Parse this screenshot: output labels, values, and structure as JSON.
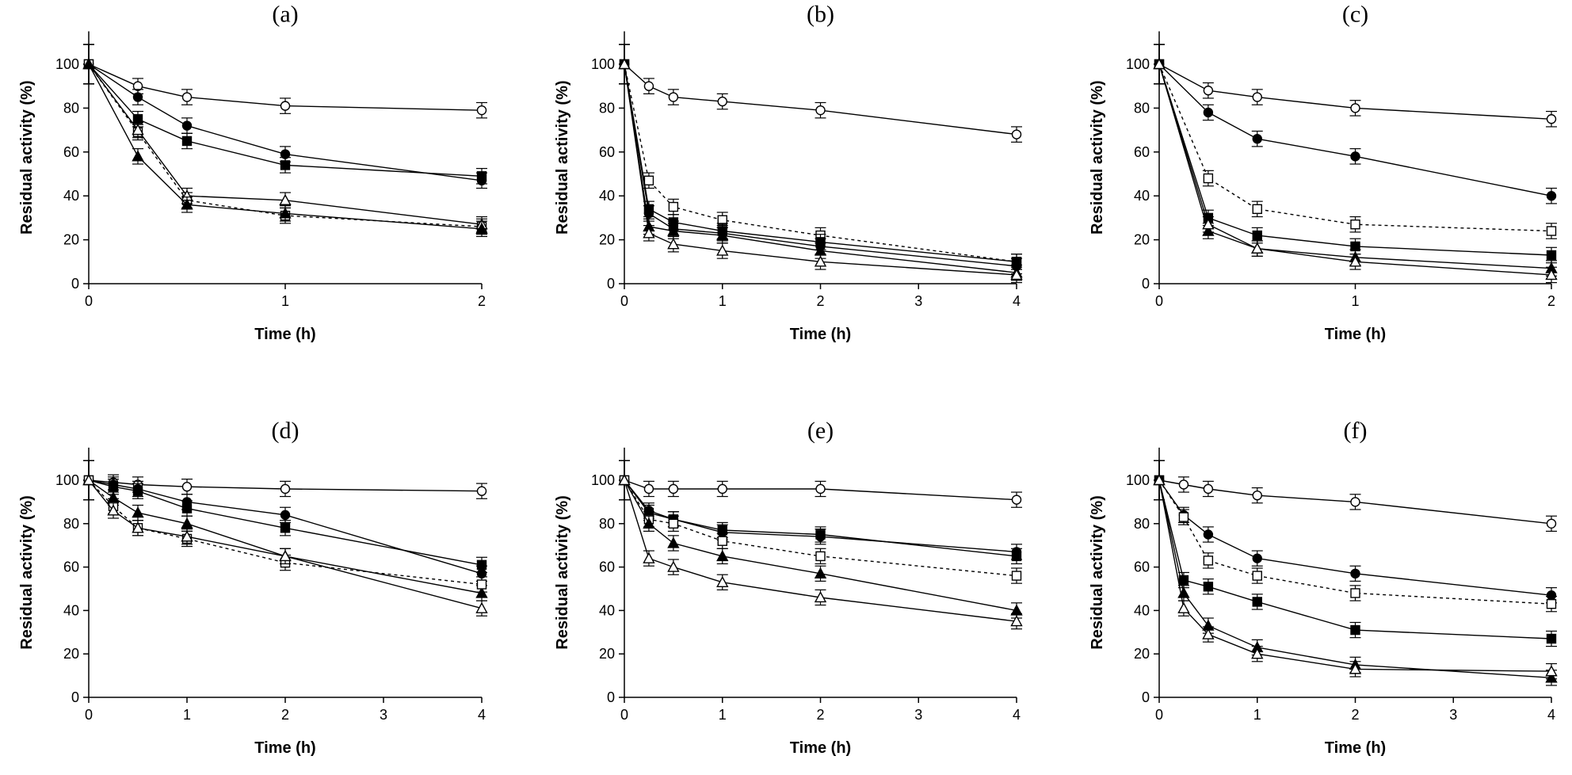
{
  "chart_data": [
    {
      "type": "line",
      "title": "(a)",
      "xlabel": "Time (h)",
      "ylabel": "Residual activity (%)",
      "xlim": [
        0,
        2
      ],
      "ylim": [
        0,
        115
      ],
      "xticks": [
        0,
        1,
        2
      ],
      "yticks": [
        0,
        20,
        40,
        60,
        80,
        100
      ],
      "grid": false,
      "series": [
        {
          "name": "open-circle",
          "marker": "circle-open",
          "dashed": false,
          "x": [
            0,
            0.25,
            0.5,
            1,
            2
          ],
          "y": [
            100,
            90,
            85,
            81,
            79
          ]
        },
        {
          "name": "filled-circle",
          "marker": "circle-filled",
          "dashed": false,
          "x": [
            0,
            0.25,
            0.5,
            1,
            2
          ],
          "y": [
            100,
            85,
            72,
            59,
            47
          ]
        },
        {
          "name": "filled-square",
          "marker": "square-filled",
          "dashed": false,
          "x": [
            0,
            0.25,
            0.5,
            1,
            2
          ],
          "y": [
            100,
            75,
            65,
            54,
            49
          ]
        },
        {
          "name": "open-square",
          "marker": "square-open",
          "dashed": true,
          "x": [
            0,
            0.25,
            0.5,
            1,
            2
          ],
          "y": [
            100,
            69,
            38,
            31,
            26
          ]
        },
        {
          "name": "open-triangle",
          "marker": "triangle-open",
          "dashed": false,
          "x": [
            0,
            0.25,
            0.5,
            1,
            2
          ],
          "y": [
            100,
            70,
            40,
            38,
            27
          ]
        },
        {
          "name": "filled-triangle",
          "marker": "triangle-filled",
          "dashed": false,
          "x": [
            0,
            0.25,
            0.5,
            1,
            2
          ],
          "y": [
            100,
            58,
            36,
            32,
            25
          ]
        }
      ]
    },
    {
      "type": "line",
      "title": "(b)",
      "xlabel": "Time (h)",
      "ylabel": "Residual activity (%)",
      "xlim": [
        0,
        4
      ],
      "ylim": [
        0,
        115
      ],
      "xticks": [
        0,
        1,
        2,
        3,
        4
      ],
      "yticks": [
        0,
        20,
        40,
        60,
        80,
        100
      ],
      "grid": false,
      "series": [
        {
          "name": "open-circle",
          "marker": "circle-open",
          "dashed": false,
          "x": [
            0,
            0.25,
            0.5,
            1,
            2,
            4
          ],
          "y": [
            100,
            90,
            85,
            83,
            79,
            68
          ]
        },
        {
          "name": "open-square",
          "marker": "square-open",
          "dashed": true,
          "x": [
            0,
            0.25,
            0.5,
            1,
            2,
            4
          ],
          "y": [
            100,
            47,
            35,
            29,
            22,
            10
          ]
        },
        {
          "name": "filled-square",
          "marker": "square-filled",
          "dashed": false,
          "x": [
            0,
            0.25,
            0.5,
            1,
            2,
            4
          ],
          "y": [
            100,
            34,
            28,
            24,
            19,
            10
          ]
        },
        {
          "name": "filled-circle",
          "marker": "circle-filled",
          "dashed": false,
          "x": [
            0,
            0.25,
            0.5,
            1,
            2,
            4
          ],
          "y": [
            100,
            32,
            25,
            23,
            17,
            8
          ]
        },
        {
          "name": "filled-triangle",
          "marker": "triangle-filled",
          "dashed": false,
          "x": [
            0,
            0.25,
            0.5,
            1,
            2,
            4
          ],
          "y": [
            100,
            26,
            24,
            22,
            15,
            5
          ]
        },
        {
          "name": "open-triangle",
          "marker": "triangle-open",
          "dashed": false,
          "x": [
            0,
            0.25,
            0.5,
            1,
            2,
            4
          ],
          "y": [
            100,
            23,
            18,
            15,
            10,
            4
          ]
        }
      ]
    },
    {
      "type": "line",
      "title": "(c)",
      "xlabel": "Time (h)",
      "ylabel": "Residual activity (%)",
      "xlim": [
        0,
        2
      ],
      "ylim": [
        0,
        115
      ],
      "xticks": [
        0,
        1,
        2
      ],
      "yticks": [
        0,
        20,
        40,
        60,
        80,
        100
      ],
      "grid": false,
      "series": [
        {
          "name": "open-circle",
          "marker": "circle-open",
          "dashed": false,
          "x": [
            0,
            0.25,
            0.5,
            1,
            2
          ],
          "y": [
            100,
            88,
            85,
            80,
            75
          ]
        },
        {
          "name": "filled-circle",
          "marker": "circle-filled",
          "dashed": false,
          "x": [
            0,
            0.25,
            0.5,
            1,
            2
          ],
          "y": [
            100,
            78,
            66,
            58,
            40
          ]
        },
        {
          "name": "open-square",
          "marker": "square-open",
          "dashed": true,
          "x": [
            0,
            0.25,
            0.5,
            1,
            2
          ],
          "y": [
            100,
            48,
            34,
            27,
            24
          ]
        },
        {
          "name": "filled-square",
          "marker": "square-filled",
          "dashed": false,
          "x": [
            0,
            0.25,
            0.5,
            1,
            2
          ],
          "y": [
            100,
            30,
            22,
            17,
            13
          ]
        },
        {
          "name": "filled-triangle",
          "marker": "triangle-filled",
          "dashed": false,
          "x": [
            0,
            0.25,
            0.5,
            1,
            2
          ],
          "y": [
            100,
            24,
            16,
            12,
            7
          ]
        },
        {
          "name": "open-triangle",
          "marker": "triangle-open",
          "dashed": false,
          "x": [
            0,
            0.25,
            0.5,
            1,
            2
          ],
          "y": [
            100,
            27,
            16,
            10,
            4
          ]
        }
      ]
    },
    {
      "type": "line",
      "title": "(d)",
      "xlabel": "Time (h)",
      "ylabel": "Residual activity (%)",
      "xlim": [
        0,
        4
      ],
      "ylim": [
        0,
        115
      ],
      "xticks": [
        0,
        1,
        2,
        3,
        4
      ],
      "yticks": [
        0,
        20,
        40,
        60,
        80,
        100
      ],
      "grid": false,
      "series": [
        {
          "name": "open-circle",
          "marker": "circle-open",
          "dashed": false,
          "x": [
            0,
            0.25,
            0.5,
            1,
            2,
            4
          ],
          "y": [
            100,
            99,
            98,
            97,
            96,
            95
          ]
        },
        {
          "name": "filled-circle",
          "marker": "circle-filled",
          "dashed": false,
          "x": [
            0,
            0.25,
            0.5,
            1,
            2,
            4
          ],
          "y": [
            100,
            98,
            96,
            90,
            84,
            57
          ]
        },
        {
          "name": "filled-square",
          "marker": "square-filled",
          "dashed": false,
          "x": [
            0,
            0.25,
            0.5,
            1,
            2,
            4
          ],
          "y": [
            100,
            97,
            95,
            87,
            78,
            61
          ]
        },
        {
          "name": "filled-triangle",
          "marker": "triangle-filled",
          "dashed": false,
          "x": [
            0,
            0.25,
            0.5,
            1,
            2,
            4
          ],
          "y": [
            100,
            92,
            85,
            80,
            65,
            48
          ]
        },
        {
          "name": "open-square",
          "marker": "square-open",
          "dashed": true,
          "x": [
            0,
            0.25,
            0.5,
            1,
            2,
            4
          ],
          "y": [
            100,
            88,
            78,
            73,
            62,
            52
          ]
        },
        {
          "name": "open-triangle",
          "marker": "triangle-open",
          "dashed": false,
          "x": [
            0,
            0.25,
            0.5,
            1,
            2,
            4
          ],
          "y": [
            100,
            86,
            78,
            74,
            65,
            41
          ]
        }
      ]
    },
    {
      "type": "line",
      "title": "(e)",
      "xlabel": "Time (h)",
      "ylabel": "Residual activity (%)",
      "xlim": [
        0,
        4
      ],
      "ylim": [
        0,
        115
      ],
      "xticks": [
        0,
        1,
        2,
        3,
        4
      ],
      "yticks": [
        0,
        20,
        40,
        60,
        80,
        100
      ],
      "grid": false,
      "series": [
        {
          "name": "open-circle",
          "marker": "circle-open",
          "dashed": false,
          "x": [
            0,
            0.25,
            0.5,
            1,
            2,
            4
          ],
          "y": [
            100,
            96,
            96,
            96,
            96,
            91
          ]
        },
        {
          "name": "filled-circle",
          "marker": "circle-filled",
          "dashed": false,
          "x": [
            0,
            0.25,
            0.5,
            1,
            2,
            4
          ],
          "y": [
            100,
            86,
            82,
            76,
            74,
            67
          ]
        },
        {
          "name": "filled-square",
          "marker": "square-filled",
          "dashed": false,
          "x": [
            0,
            0.25,
            0.5,
            1,
            2,
            4
          ],
          "y": [
            100,
            85,
            82,
            77,
            75,
            65
          ]
        },
        {
          "name": "open-square",
          "marker": "square-open",
          "dashed": true,
          "x": [
            0,
            0.25,
            0.5,
            1,
            2,
            4
          ],
          "y": [
            100,
            82,
            80,
            72,
            65,
            56
          ]
        },
        {
          "name": "filled-triangle",
          "marker": "triangle-filled",
          "dashed": false,
          "x": [
            0,
            0.25,
            0.5,
            1,
            2,
            4
          ],
          "y": [
            100,
            80,
            71,
            65,
            57,
            40
          ]
        },
        {
          "name": "open-triangle",
          "marker": "triangle-open",
          "dashed": false,
          "x": [
            0,
            0.25,
            0.5,
            1,
            2,
            4
          ],
          "y": [
            100,
            64,
            60,
            53,
            46,
            35
          ]
        }
      ]
    },
    {
      "type": "line",
      "title": "(f)",
      "xlabel": "Time (h)",
      "ylabel": "Residual activity (%)",
      "xlim": [
        0,
        4
      ],
      "ylim": [
        0,
        115
      ],
      "xticks": [
        0,
        1,
        2,
        3,
        4
      ],
      "yticks": [
        0,
        20,
        40,
        60,
        80,
        100
      ],
      "grid": false,
      "series": [
        {
          "name": "open-circle",
          "marker": "circle-open",
          "dashed": false,
          "x": [
            0,
            0.25,
            0.5,
            1,
            2,
            4
          ],
          "y": [
            100,
            98,
            96,
            93,
            90,
            80
          ]
        },
        {
          "name": "filled-circle",
          "marker": "circle-filled",
          "dashed": false,
          "x": [
            0,
            0.25,
            0.5,
            1,
            2,
            4
          ],
          "y": [
            100,
            84,
            75,
            64,
            57,
            47
          ]
        },
        {
          "name": "open-square",
          "marker": "square-open",
          "dashed": true,
          "x": [
            0,
            0.25,
            0.5,
            1,
            2,
            4
          ],
          "y": [
            100,
            83,
            63,
            56,
            48,
            43
          ]
        },
        {
          "name": "filled-square",
          "marker": "square-filled",
          "dashed": false,
          "x": [
            0,
            0.25,
            0.5,
            1,
            2,
            4
          ],
          "y": [
            100,
            54,
            51,
            44,
            31,
            27
          ]
        },
        {
          "name": "filled-triangle",
          "marker": "triangle-filled",
          "dashed": false,
          "x": [
            0,
            0.25,
            0.5,
            1,
            2,
            4
          ],
          "y": [
            100,
            48,
            33,
            23,
            15,
            9
          ]
        },
        {
          "name": "open-triangle",
          "marker": "triangle-open",
          "dashed": false,
          "x": [
            0,
            0.25,
            0.5,
            1,
            2,
            4
          ],
          "y": [
            100,
            41,
            29,
            20,
            13,
            12
          ]
        }
      ]
    }
  ]
}
